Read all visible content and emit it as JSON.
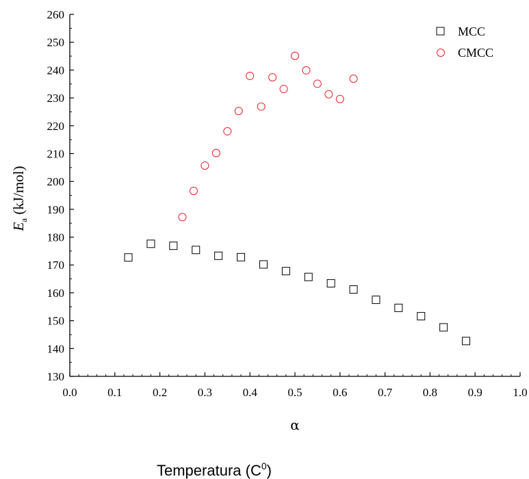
{
  "chart_data": {
    "type": "scatter",
    "xlabel": "α",
    "ylabel_main": "E",
    "ylabel_sub": "a",
    "ylabel_rest": " (kJ/mol)",
    "xlim": [
      0.0,
      1.0
    ],
    "ylim": [
      130,
      260
    ],
    "x_ticks": [
      "0.0",
      "0.1",
      "0.2",
      "0.3",
      "0.4",
      "0.5",
      "0.6",
      "0.7",
      "0.8",
      "0.9",
      "1.0"
    ],
    "y_ticks": [
      "130",
      "140",
      "150",
      "160",
      "170",
      "180",
      "190",
      "200",
      "210",
      "220",
      "230",
      "240",
      "250",
      "260"
    ],
    "legend_position": "top-right",
    "grid": false,
    "series": [
      {
        "name": "MCC",
        "marker": "square",
        "color": "#000000",
        "x": [
          0.13,
          0.18,
          0.23,
          0.28,
          0.33,
          0.38,
          0.43,
          0.48,
          0.53,
          0.58,
          0.63,
          0.68,
          0.73,
          0.78,
          0.83,
          0.88
        ],
        "y": [
          172.7,
          177.6,
          176.9,
          175.4,
          173.3,
          172.8,
          170.2,
          167.8,
          165.7,
          163.4,
          161.2,
          157.5,
          154.6,
          151.6,
          147.6,
          142.7
        ]
      },
      {
        "name": "CMCC",
        "marker": "circle",
        "color": "#e8202a",
        "x": [
          0.25,
          0.275,
          0.3,
          0.325,
          0.35,
          0.375,
          0.4,
          0.425,
          0.45,
          0.475,
          0.5,
          0.525,
          0.55,
          0.575,
          0.6,
          0.63
        ],
        "y": [
          187.2,
          196.6,
          205.7,
          210.2,
          218.0,
          225.3,
          237.9,
          226.9,
          237.4,
          233.2,
          245.1,
          239.9,
          235.1,
          231.3,
          229.6,
          236.9
        ]
      }
    ]
  },
  "caption": {
    "main": "Temperatura (C",
    "sup": "0",
    "close": ")"
  }
}
